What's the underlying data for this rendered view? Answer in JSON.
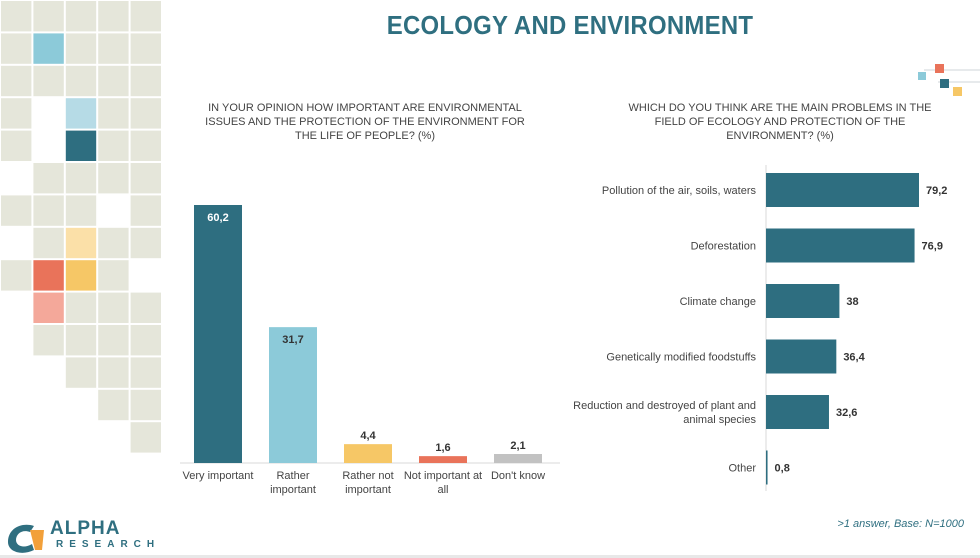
{
  "title": "ECOLOGY AND ENVIRONMENT",
  "colors": {
    "teal": "#2e6e80",
    "light_blue": "#8ccad9",
    "yellow": "#f6c766",
    "red": "#e9735a",
    "grey": "#c2c2c2",
    "mosaic_base": "#e5e6da"
  },
  "logo": {
    "name": "ALPHA",
    "sub": "RESEARCH",
    "icon": "alpha-research-logo"
  },
  "footnote": ">1 answer, Base: N=1000",
  "chart_data": [
    {
      "type": "bar",
      "title": "IN YOUR OPINION HOW IMPORTANT ARE ENVIRONMENTAL ISSUES AND THE PROTECTION OF THE ENVIRONMENT FOR THE LIFE OF PEOPLE? (%)",
      "title_lines": [
        "IN YOUR OPINION HOW IMPORTANT ARE ENVIRONMENTAL",
        "ISSUES AND THE PROTECTION OF THE ENVIRONMENT FOR",
        "THE LIFE OF PEOPLE? (%)"
      ],
      "categories": [
        "Very important",
        "Rather important",
        "Rather not important",
        "Not important at all",
        "Don't know"
      ],
      "category_lines": [
        [
          "Very important"
        ],
        [
          "Rather",
          "important"
        ],
        [
          "Rather not",
          "important"
        ],
        [
          "Not important at",
          "all"
        ],
        [
          "Don't know"
        ]
      ],
      "values": [
        60.2,
        31.7,
        4.4,
        1.6,
        2.1
      ],
      "labels": [
        "60,2",
        "31,7",
        "4,4",
        "1,6",
        "2,1"
      ],
      "bar_colors": [
        "#2e6e80",
        "#8ccad9",
        "#f6c766",
        "#e9735a",
        "#c2c2c2"
      ],
      "ylim": [
        0,
        60.2
      ],
      "grid": false
    },
    {
      "type": "bar",
      "orientation": "horizontal",
      "title": "WHICH DO YOU THINK ARE THE MAIN PROBLEMS IN THE FIELD OF ECOLOGY AND PROTECTION OF THE ENVIRONMENT? (%)",
      "title_lines": [
        "WHICH DO YOU THINK ARE THE MAIN PROBLEMS IN THE",
        "FIELD OF ECOLOGY AND PROTECTION OF THE",
        "ENVIRONMENT? (%)"
      ],
      "categories": [
        "Pollution of the air, soils, waters",
        "Deforestation",
        "Climate change",
        "Genetically modified foodstuffs",
        "Reduction and destroyed of plant and animal species",
        "Other"
      ],
      "category_lines": [
        [
          "Pollution of the air, soils, waters"
        ],
        [
          "Deforestation"
        ],
        [
          "Climate change"
        ],
        [
          "Genetically modified foodstuffs"
        ],
        [
          "Reduction and destroyed of plant and",
          "animal species"
        ],
        [
          "Other"
        ]
      ],
      "values": [
        79.2,
        76.9,
        38,
        36.4,
        32.6,
        0.8
      ],
      "labels": [
        "79,2",
        "76,9",
        "38",
        "36,4",
        "32,6",
        "0,8"
      ],
      "bar_color": "#2e6e80",
      "xlim": [
        0,
        79.2
      ],
      "grid": false
    }
  ]
}
